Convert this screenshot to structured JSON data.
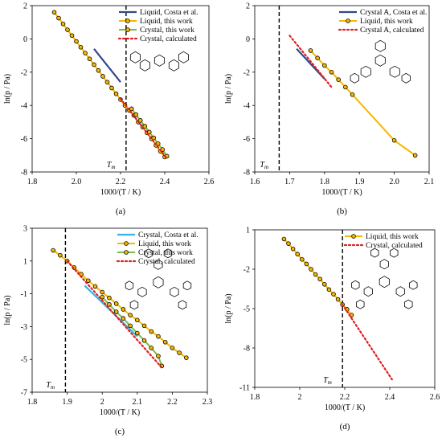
{
  "colors": {
    "navy": "#2e4a8c",
    "orange": "#f5b800",
    "green": "#7cba4a",
    "red": "#e02020",
    "cyan": "#36b4e6",
    "marker_fill": "#f5b800",
    "marker_edge": "#000000",
    "tm_line": "#000000"
  },
  "chart_data": [
    {
      "type": "line",
      "letter": "(a)",
      "tm_label": "T",
      "tm_sub": "m",
      "xlabel": "1000/(T / K)",
      "ylabel": "ln(p / Pa)",
      "xlim": [
        1.8,
        2.6
      ],
      "ylim": [
        -8,
        2
      ],
      "xticks": [
        "1.8",
        "2.0",
        "2.2",
        "2.4",
        "2.6"
      ],
      "yticks": [
        "-8",
        "-6",
        "-4",
        "-2",
        "0",
        "2"
      ],
      "tm": 2.225,
      "legend_position": "top-right",
      "series": [
        {
          "name": "Liquid, Costa et al.",
          "style": "navy",
          "x": [
            2.08,
            2.2
          ],
          "y": [
            -0.6,
            -2.6
          ]
        },
        {
          "name": "Liquid, this work",
          "style": "orange",
          "x": [
            1.9,
            1.92,
            1.94,
            1.96,
            1.98,
            2.0,
            2.02,
            2.04,
            2.06,
            2.08,
            2.1,
            2.12,
            2.14,
            2.16,
            2.18,
            2.2,
            2.22,
            2.24,
            2.26,
            2.28,
            2.3,
            2.32,
            2.34,
            2.36,
            2.38,
            2.4
          ],
          "y": [
            1.6,
            1.25,
            0.9,
            0.55,
            0.2,
            -0.15,
            -0.5,
            -0.85,
            -1.2,
            -1.55,
            -1.9,
            -2.25,
            -2.6,
            -2.95,
            -3.3,
            -3.65,
            -4.0,
            -4.3,
            -4.6,
            -5.0,
            -5.3,
            -5.65,
            -6.0,
            -6.4,
            -6.75,
            -7.1
          ]
        },
        {
          "name": "Crystal, this work",
          "style": "green",
          "x": [
            2.25,
            2.27,
            2.29,
            2.31,
            2.33,
            2.35,
            2.37,
            2.39,
            2.41
          ],
          "y": [
            -4.2,
            -4.55,
            -4.9,
            -5.25,
            -5.6,
            -5.95,
            -6.3,
            -6.65,
            -7.05
          ]
        },
        {
          "name": "Crystal, calculated",
          "style": "red",
          "x": [
            2.2,
            2.41
          ],
          "y": [
            -3.6,
            -7.2
          ]
        }
      ]
    },
    {
      "type": "line",
      "letter": "(b)",
      "tm_label": "T",
      "tm_sub": "m",
      "xlabel": "1000/(T / K)",
      "ylabel": "ln(p / Pa)",
      "xlim": [
        1.6,
        2.1
      ],
      "ylim": [
        -8,
        2
      ],
      "xticks": [
        "1.6",
        "1.7",
        "1.8",
        "1.9",
        "2.0",
        "2.1"
      ],
      "yticks": [
        "-8",
        "-6",
        "-4",
        "-2",
        "0",
        "2"
      ],
      "tm": 1.67,
      "legend_position": "top-right",
      "series": [
        {
          "name": "Crystal A, Costa et al.",
          "style": "navy",
          "x": [
            1.72,
            1.8
          ],
          "y": [
            -0.6,
            -2.4
          ]
        },
        {
          "name": "Liquid, this work",
          "style": "orange",
          "x": [
            1.76,
            1.78,
            1.8,
            1.82,
            1.84,
            1.86,
            1.88,
            2.0,
            2.06
          ],
          "y": [
            -0.7,
            -1.15,
            -1.6,
            -2.0,
            -2.45,
            -2.9,
            -3.35,
            -6.1,
            -7.0
          ]
        },
        {
          "name": "Crystal A, calculated",
          "style": "red",
          "x": [
            1.7,
            1.82
          ],
          "y": [
            0.2,
            -2.9
          ]
        }
      ]
    },
    {
      "type": "line",
      "letter": "(c)",
      "tm_label": "T",
      "tm_sub": "m",
      "xlabel": "1000/(T / K)",
      "ylabel": "ln(p / Pa)",
      "xlim": [
        1.8,
        2.3
      ],
      "ylim": [
        -7,
        3
      ],
      "xticks": [
        "1.8",
        "1.9",
        "2",
        "2.1",
        "2.2",
        "2.3"
      ],
      "yticks": [
        "-7",
        "-5",
        "-3",
        "-1",
        "1",
        "3"
      ],
      "tm": 1.895,
      "legend_position": "top-right",
      "series": [
        {
          "name": "Crystal, Costa et al.",
          "style": "cyan",
          "x": [
            1.95,
            2.1
          ],
          "y": [
            -0.5,
            -3.6
          ]
        },
        {
          "name": "Liquid, this work",
          "style": "orange",
          "x": [
            1.86,
            1.88,
            1.9,
            1.92,
            1.94,
            1.96,
            1.98,
            2.0,
            2.02,
            2.04,
            2.06,
            2.08,
            2.1,
            2.12,
            2.14,
            2.16,
            2.18,
            2.2,
            2.22,
            2.24
          ],
          "y": [
            1.65,
            1.35,
            1.0,
            0.6,
            0.2,
            -0.2,
            -0.55,
            -0.9,
            -1.25,
            -1.6,
            -1.95,
            -2.3,
            -2.6,
            -2.95,
            -3.3,
            -3.6,
            -3.95,
            -4.3,
            -4.6,
            -4.9
          ]
        },
        {
          "name": "Crystal, this work",
          "style": "green",
          "x": [
            2.0,
            2.02,
            2.04,
            2.06,
            2.08,
            2.1,
            2.12,
            2.14,
            2.16,
            2.17
          ],
          "y": [
            -1.2,
            -1.65,
            -2.1,
            -2.5,
            -2.95,
            -3.4,
            -3.85,
            -4.3,
            -4.8,
            -5.4
          ]
        },
        {
          "name": "Crystal, calculated",
          "style": "red",
          "x": [
            1.9,
            2.17
          ],
          "y": [
            1.0,
            -5.5
          ]
        }
      ]
    },
    {
      "type": "line",
      "letter": "(d)",
      "tm_label": "T",
      "tm_sub": "m",
      "xlabel": "1000/(T / K)",
      "ylabel": "ln(p / Pa)",
      "xlim": [
        1.8,
        2.6
      ],
      "ylim": [
        -11,
        1
      ],
      "xticks": [
        "1.8",
        "2",
        "2.2",
        "2.4",
        "2.6"
      ],
      "yticks": [
        "-11",
        "-8",
        "-5",
        "-2",
        "1"
      ],
      "tm": 2.19,
      "legend_position": "top-right",
      "series": [
        {
          "name": "Liquid, this work",
          "style": "orange",
          "x": [
            1.93,
            1.95,
            1.97,
            1.99,
            2.01,
            2.03,
            2.05,
            2.07,
            2.09,
            2.11,
            2.13,
            2.15,
            2.17,
            2.19,
            2.21,
            2.23
          ],
          "y": [
            0.3,
            -0.05,
            -0.45,
            -0.85,
            -1.25,
            -1.6,
            -2.0,
            -2.4,
            -2.75,
            -3.15,
            -3.55,
            -3.9,
            -4.3,
            -4.7,
            -5.05,
            -5.5
          ]
        },
        {
          "name": "Crystal, calculated",
          "style": "red",
          "x": [
            2.19,
            2.41
          ],
          "y": [
            -4.7,
            -10.4
          ]
        }
      ]
    }
  ]
}
